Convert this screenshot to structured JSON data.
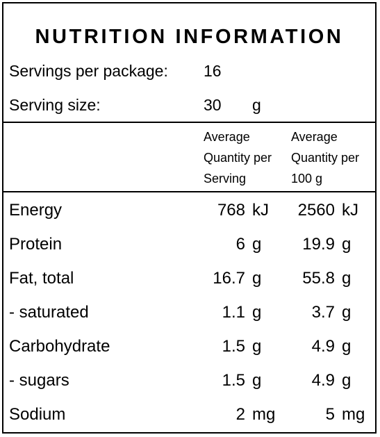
{
  "title": "NUTRITION INFORMATION",
  "servings": {
    "label": "Servings per package:",
    "value": "16"
  },
  "serving_size": {
    "label": "Serving size:",
    "value": "30",
    "unit": "g"
  },
  "columns": {
    "per_serving": [
      "Average",
      "Quantity per",
      "Serving"
    ],
    "per_100g": [
      "Average",
      "Quantity per",
      "100 g"
    ]
  },
  "rows": [
    {
      "name": "Energy",
      "serving": "768",
      "serving_unit": "kJ",
      "per100": "2560",
      "per100_unit": "kJ"
    },
    {
      "name": "Protein",
      "serving": "6",
      "serving_unit": "g",
      "per100": "19.9",
      "per100_unit": "g"
    },
    {
      "name": "Fat, total",
      "serving": "16.7",
      "serving_unit": "g",
      "per100": "55.8",
      "per100_unit": "g"
    },
    {
      "name": "- saturated",
      "serving": "1.1",
      "serving_unit": "g",
      "per100": "3.7",
      "per100_unit": "g"
    },
    {
      "name": "Carbohydrate",
      "serving": "1.5",
      "serving_unit": "g",
      "per100": "4.9",
      "per100_unit": "g"
    },
    {
      "name": "- sugars",
      "serving": "1.5",
      "serving_unit": "g",
      "per100": "4.9",
      "per100_unit": "g"
    },
    {
      "name": "Sodium",
      "serving": "2",
      "serving_unit": "mg",
      "per100": "5",
      "per100_unit": "mg"
    }
  ]
}
